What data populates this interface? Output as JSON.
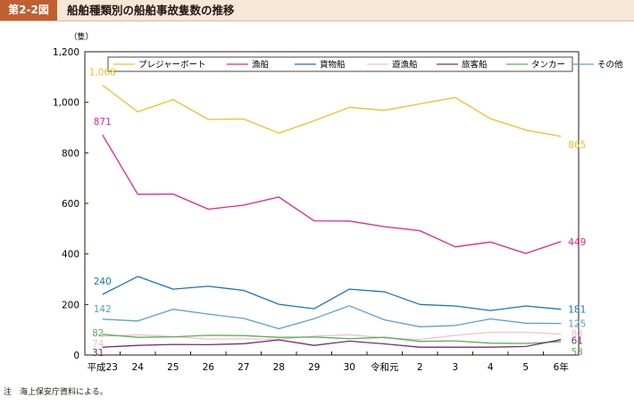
{
  "header": {
    "figure_no": "第2-2図",
    "title": "船舶種類別の船舶事故隻数の推移"
  },
  "note": "注　海上保安庁資料による。",
  "colors": {
    "pleasure_boat": "#f0be2a",
    "fishing": "#e2258a",
    "cargo": "#1b74b9",
    "recreational_fishing": "#f4bfcf",
    "passenger": "#7a2a74",
    "tanker": "#56b14f",
    "other": "#5aa2cf"
  },
  "chart_data": {
    "type": "line",
    "ylabel": "（隻）",
    "ylim": [
      0,
      1200
    ],
    "yticks": [
      "0",
      "200",
      "400",
      "600",
      "800",
      "1,000",
      "1,200"
    ],
    "ytick_values": [
      0,
      200,
      400,
      600,
      800,
      1000,
      1200
    ],
    "grid": false,
    "legend_position": "top",
    "categories": [
      "平成23",
      "24",
      "25",
      "26",
      "27",
      "28",
      "29",
      "30",
      "令和元",
      "2",
      "3",
      "4",
      "5",
      "6年"
    ],
    "series": [
      {
        "name": "プレジャーボート",
        "color": "#f0be2a",
        "values": [
          1068,
          962,
          1011,
          932,
          934,
          878,
          927,
          980,
          968,
          994,
          1019,
          935,
          890,
          865
        ],
        "start_label": "1,068",
        "end_label": "865"
      },
      {
        "name": "漁船",
        "color": "#e2258a",
        "values": [
          871,
          636,
          637,
          577,
          593,
          625,
          531,
          530,
          508,
          492,
          428,
          447,
          402,
          449
        ],
        "start_label": "871",
        "end_label": "449"
      },
      {
        "name": "貨物船",
        "color": "#1b74b9",
        "values": [
          240,
          311,
          261,
          272,
          256,
          201,
          183,
          261,
          250,
          200,
          194,
          176,
          194,
          181
        ],
        "start_label": "240",
        "end_label": "181"
      },
      {
        "name": "遊漁船",
        "color": "#f4bfcf",
        "values": [
          74,
          80,
          73,
          63,
          64,
          62,
          75,
          80,
          68,
          61,
          78,
          90,
          90,
          83
        ],
        "start_label": "74",
        "end_label": "83"
      },
      {
        "name": "旅客船",
        "color": "#7a2a74",
        "values": [
          31,
          38,
          42,
          41,
          45,
          60,
          38,
          55,
          44,
          31,
          31,
          31,
          34,
          61
        ],
        "start_label": "31",
        "end_label": "61"
      },
      {
        "name": "タンカー",
        "color": "#56b14f",
        "values": [
          82,
          70,
          72,
          78,
          77,
          70,
          71,
          65,
          70,
          54,
          56,
          47,
          46,
          53
        ],
        "start_label": "82",
        "end_label": "53"
      },
      {
        "name": "その他",
        "color": "#5aa2cf",
        "values": [
          142,
          135,
          181,
          162,
          145,
          104,
          144,
          195,
          139,
          112,
          117,
          143,
          126,
          125
        ],
        "start_label": "142",
        "end_label": "125"
      }
    ]
  }
}
